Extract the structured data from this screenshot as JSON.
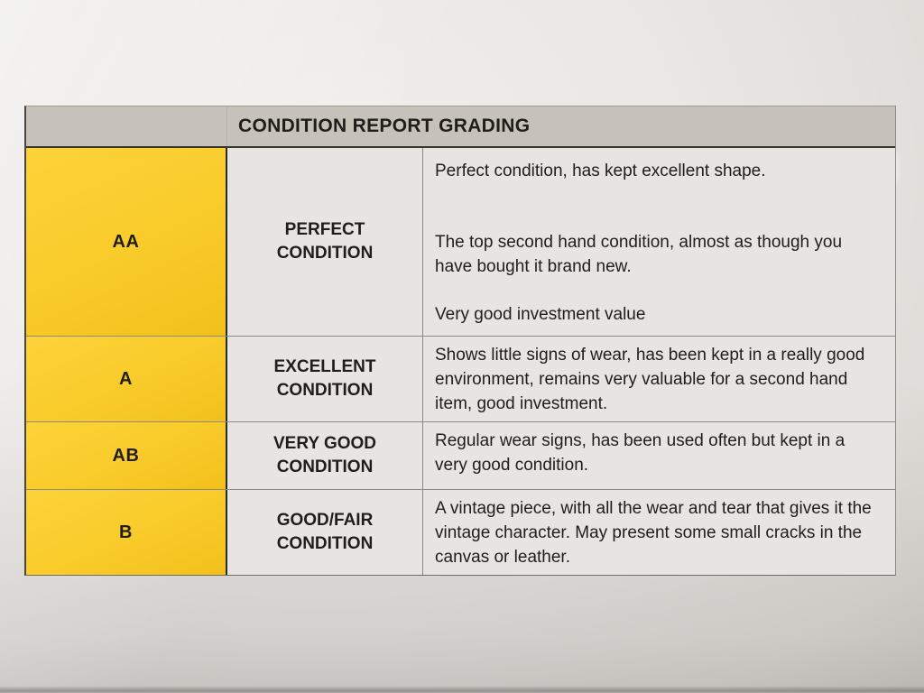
{
  "document": {
    "header_title": "CONDITION REPORT GRADING",
    "colors": {
      "grade_column_yellow": "#f9cb2a",
      "header_band_gray": "#c6c2ba",
      "cell_background": "#e7e5e2",
      "text": "#201e1b"
    },
    "table": {
      "rows": [
        {
          "code": "AA",
          "label": "PERFECT CONDITION",
          "paragraphs": [
            "Perfect condition, has kept excellent shape.",
            "The top second hand condition, almost as though you have bought it brand new.",
            "Very good investment value"
          ]
        },
        {
          "code": "A",
          "label": "EXCELLENT CONDITION",
          "paragraphs": [
            "Shows little signs of wear, has been kept in a really good environment, remains very valuable for a second hand item, good investment."
          ]
        },
        {
          "code": "AB",
          "label": "VERY GOOD CONDITION",
          "paragraphs": [
            "Regular wear signs, has been used often but kept in a very good condition."
          ]
        },
        {
          "code": "B",
          "label": "GOOD/FAIR CONDITION",
          "paragraphs": [
            "A vintage piece, with all the wear and tear that gives it the vintage character. May present some small cracks in the canvas or leather."
          ]
        }
      ]
    }
  }
}
